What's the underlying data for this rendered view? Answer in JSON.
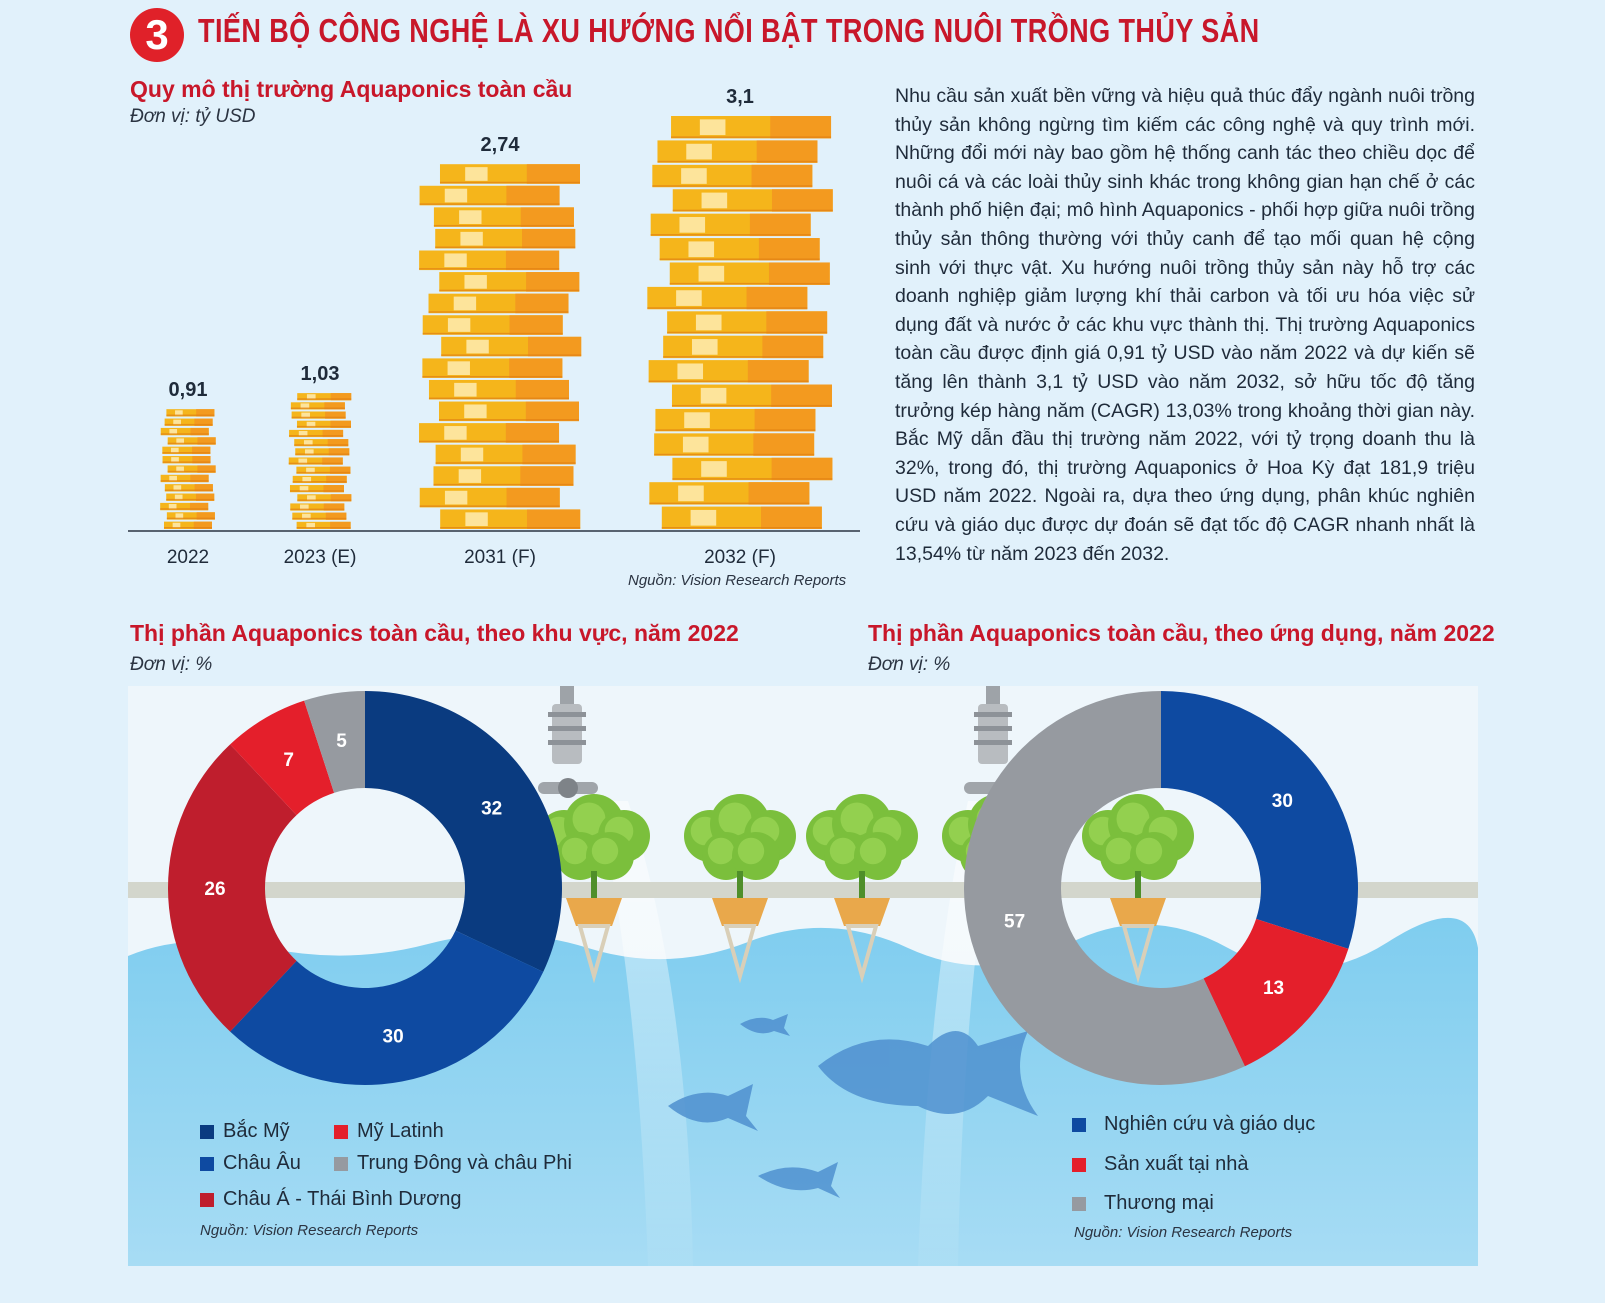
{
  "header": {
    "number": "3",
    "title": "TIẾN BỘ CÔNG NGHỆ LÀ XU HƯỚNG NỔI BẬT TRONG NUÔI TRỒNG THỦY SẢN"
  },
  "market_chart": {
    "title": "Quy mô thị trường Aquaponics toàn cầu",
    "unit": "Đơn vị: tỷ USD",
    "source": "Nguồn: Vision Research Reports",
    "value_labels": [
      "0,91",
      "1,03",
      "2,74",
      "3,1"
    ]
  },
  "paragraph": "Nhu cầu sản xuất bền vững và hiệu quả thúc đẩy ngành nuôi trồng thủy sản không ngừng tìm kiếm các công nghệ và quy trình mới. Những đổi mới này bao gồm hệ thống canh tác theo chiều dọc để nuôi cá và các loài thủy sinh khác trong không gian hạn chế ở các thành phố hiện đại; mô hình Aquaponics - phối hợp giữa nuôi trồng thủy sản thông thường với thủy canh để tạo mối quan hệ cộng sinh với thực vật. Xu hướng nuôi trồng thủy sản này hỗ trợ các doanh nghiệp giảm lượng khí thải carbon và tối ưu hóa việc sử dụng đất và nước ở các khu vực thành thị. Thị trường Aquaponics toàn cầu được định giá 0,91 tỷ USD vào năm 2022 và dự kiến sẽ tăng lên thành 3,1 tỷ USD vào năm 2032, sở hữu tốc độ tăng trưởng kép hàng năm (CAGR) 13,03% trong khoảng thời gian này. Bắc Mỹ dẫn đầu thị trường năm 2022, với tỷ trọng doanh thu là 32%, trong đó, thị trường Aquaponics ở Hoa Kỳ đạt 181,9 triệu USD năm 2022. Ngoài ra, dựa theo ứng dụng, phân khúc nghiên cứu và giáo dục được dự đoán sẽ đạt tốc độ CAGR nhanh nhất là 13,54% từ năm 2023 đến 2032.",
  "region_chart": {
    "title": "Thị phần Aquaponics toàn cầu, theo khu vực, năm 2022",
    "unit": "Đơn vị: %",
    "source": "Nguồn: Vision Research Reports",
    "legend": [
      "Bắc Mỹ",
      "Mỹ Latinh",
      "Châu Âu",
      "Trung Đông và châu Phi",
      "Châu Á - Thái Bình Dương"
    ]
  },
  "application_chart": {
    "title": "Thị phần Aquaponics toàn cầu, theo ứng dụng, năm 2022",
    "unit": "Đơn vị: %",
    "source": "Nguồn: Vision Research Reports",
    "legend": [
      "Nghiên cứu và giáo dục",
      "Sản xuất tại nhà",
      "Thương mại"
    ]
  },
  "colors": {
    "brand_red": "#c8172a",
    "coin_gold": "#f5b51b",
    "coin_orange": "#f39a1f",
    "dark_navy": "#0a3b80",
    "blue": "#0e4aa1",
    "dark_red": "#bf1e2d",
    "red": "#e41f2b",
    "gray": "#969aa0"
  },
  "chart_data": [
    {
      "type": "bar",
      "title": "Quy mô thị trường Aquaponics toàn cầu",
      "ylabel": "Đơn vị: tỷ USD",
      "categories": [
        "2022",
        "2023 (E)",
        "2031 (F)",
        "2032 (F)"
      ],
      "values": [
        0.91,
        1.03,
        2.74,
        3.1
      ],
      "ylim": [
        0,
        3.5
      ]
    },
    {
      "type": "pie",
      "title": "Thị phần Aquaponics toàn cầu, theo khu vực, năm 2022",
      "categories": [
        "Bắc Mỹ",
        "Châu Âu",
        "Châu Á - Thái Bình Dương",
        "Mỹ Latinh",
        "Trung Đông và châu Phi"
      ],
      "values": [
        32,
        30,
        26,
        7,
        5
      ],
      "colors": [
        "#0a3b80",
        "#0e4aa1",
        "#bf1e2d",
        "#e41f2b",
        "#969aa0"
      ]
    },
    {
      "type": "pie",
      "title": "Thị phần Aquaponics toàn cầu, theo ứng dụng, năm 2022",
      "categories": [
        "Nghiên cứu và giáo dục",
        "Sản xuất tại nhà",
        "Thương mại"
      ],
      "values": [
        30,
        13,
        57
      ],
      "colors": [
        "#0e4aa1",
        "#e41f2b",
        "#969aa0"
      ]
    }
  ]
}
